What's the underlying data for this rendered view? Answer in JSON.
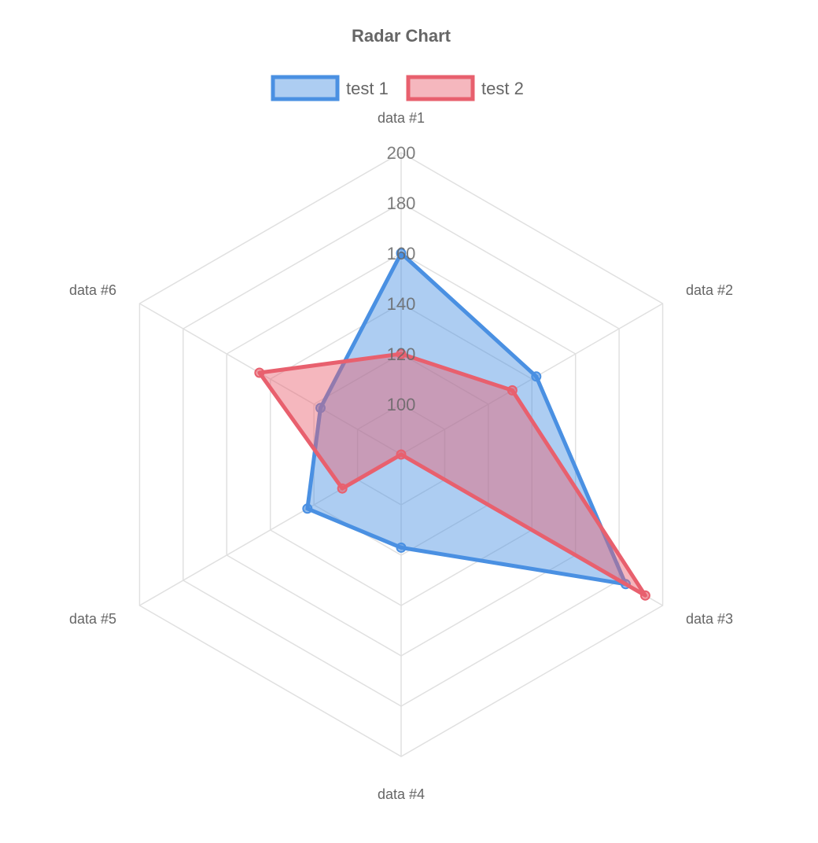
{
  "chart_data": {
    "type": "radar",
    "title": "Radar Chart",
    "labels": [
      "data #1",
      "data #2",
      "data #3",
      "data #4",
      "data #5",
      "data #6"
    ],
    "series": [
      {
        "name": "test 1",
        "values": [
          160,
          142,
          183,
          117,
          123,
          117
        ],
        "border_color": "#4a90e2",
        "fill_color": "#4a90e2",
        "fill_opacity": 0.45
      },
      {
        "name": "test 2",
        "values": [
          120,
          131,
          192,
          80,
          107,
          145
        ],
        "border_color": "#e8606e",
        "fill_color": "#e8606e",
        "fill_opacity": 0.45
      }
    ],
    "r_axis": {
      "min": 80,
      "max": 200,
      "step": 20,
      "ticks": [
        "200",
        "180",
        "160",
        "140",
        "120",
        "100"
      ]
    },
    "grid": true,
    "legend_position": "top",
    "text_color": "#666666",
    "grid_color": "#e0e0e0"
  }
}
